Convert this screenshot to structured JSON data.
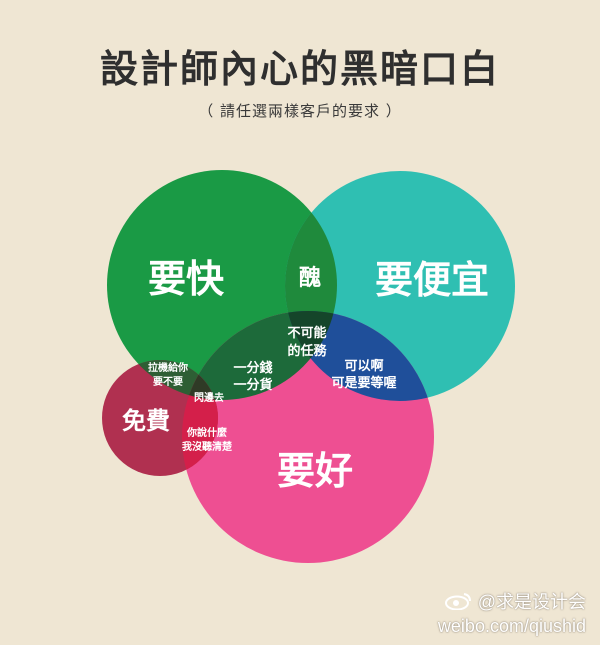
{
  "header": {
    "title": "設計師內心的黑暗口白",
    "subtitle": "（ 請任選兩樣客戶的要求 ）"
  },
  "venn": {
    "circles": {
      "fast": {
        "label": "要快",
        "color": "#1a9a45"
      },
      "cheap": {
        "label": "要便宜",
        "color": "#2fbfb2"
      },
      "good": {
        "label": "要好",
        "color": "#ee4f92"
      },
      "free": {
        "label": "免費",
        "color": "#b03050"
      }
    },
    "regions": {
      "fast_cheap": "醜",
      "fast_cheap_good_line1": "不可能",
      "fast_cheap_good_line2": "的任務",
      "fast_good_line1": "一分錢",
      "fast_good_line2": "一分貨",
      "cheap_good_line1": "可以啊",
      "cheap_good_line2": "可是要等喔",
      "fast_free_line1": "拉機給你",
      "fast_free_line2": "要不要",
      "fast_good_free": "閃邊去",
      "good_free_line1": "你說什麼",
      "good_free_line2": "我沒聽清楚"
    }
  },
  "watermark": {
    "handle": "@求是设计会",
    "url": "weibo.com/qiushid"
  }
}
